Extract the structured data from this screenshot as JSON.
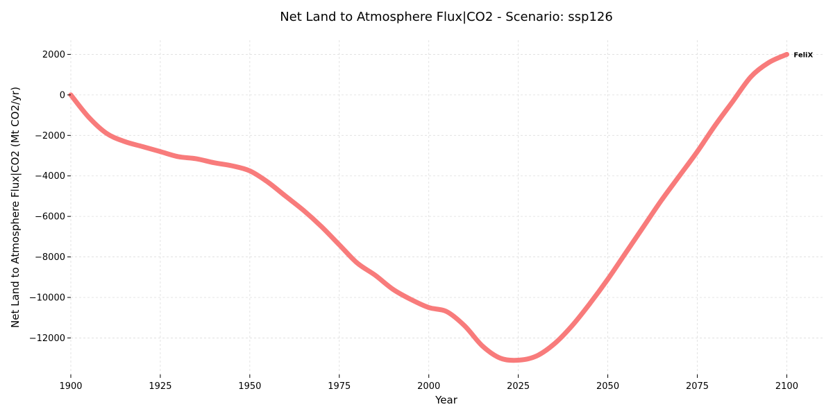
{
  "chart_data": {
    "type": "line",
    "title": "Net Land to Atmosphere Flux|CO2 - Scenario: ssp126",
    "xlabel": "Year",
    "ylabel": "Net Land to Atmosphere Flux|CO2 (Mt CO2/yr)",
    "xlim": [
      1900,
      2110
    ],
    "ylim": [
      -13800,
      2700
    ],
    "x_ticks": [
      1900,
      1925,
      1950,
      1975,
      2000,
      2025,
      2050,
      2075,
      2100
    ],
    "y_ticks": [
      2000,
      0,
      -2000,
      -4000,
      -6000,
      -8000,
      -10000,
      -12000
    ],
    "x_tick_labels": [
      "1900",
      "1925",
      "1950",
      "1975",
      "2000",
      "2025",
      "2050",
      "2075",
      "2100"
    ],
    "y_tick_labels": [
      "2000",
      "0",
      "−2000",
      "−4000",
      "−6000",
      "−8000",
      "−10000",
      "−12000"
    ],
    "grid": true,
    "series": [
      {
        "name": "FeliX",
        "color": "#f87b7b",
        "x": [
          1900,
          1905,
          1910,
          1915,
          1920,
          1925,
          1930,
          1935,
          1940,
          1945,
          1950,
          1955,
          1960,
          1965,
          1970,
          1975,
          1980,
          1985,
          1990,
          1995,
          2000,
          2005,
          2010,
          2015,
          2020,
          2025,
          2030,
          2035,
          2040,
          2045,
          2050,
          2055,
          2060,
          2065,
          2070,
          2075,
          2080,
          2085,
          2090,
          2095,
          2100
        ],
        "values": [
          0,
          -1100,
          -1900,
          -2300,
          -2550,
          -2800,
          -3050,
          -3150,
          -3350,
          -3500,
          -3750,
          -4300,
          -5000,
          -5700,
          -6500,
          -7400,
          -8300,
          -8900,
          -9600,
          -10100,
          -10500,
          -10700,
          -11400,
          -12400,
          -13000,
          -13100,
          -12900,
          -12300,
          -11400,
          -10300,
          -9100,
          -7800,
          -6500,
          -5200,
          -4000,
          -2800,
          -1500,
          -300,
          900,
          1600,
          2000
        ]
      }
    ]
  }
}
